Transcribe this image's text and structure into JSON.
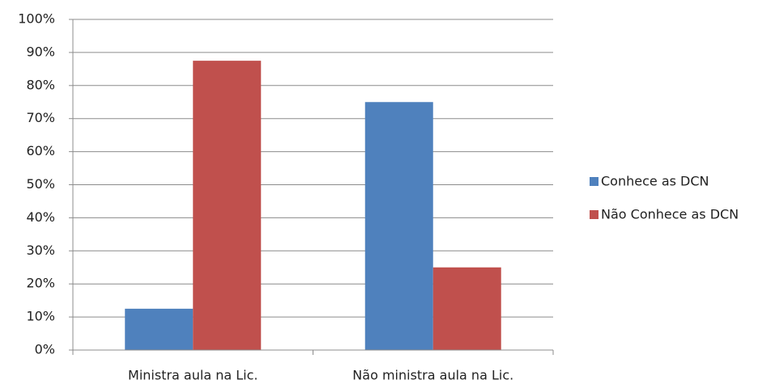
{
  "chart_data": {
    "type": "bar",
    "categories": [
      "Ministra aula na Lic.",
      "Não ministra aula na Lic."
    ],
    "series": [
      {
        "name": "Conhece as DCN",
        "color": "#4f81bd",
        "values": [
          12.5,
          75
        ]
      },
      {
        "name": "Não Conhece as DCN",
        "color": "#c0504d",
        "values": [
          87.5,
          25
        ]
      }
    ],
    "ylim": [
      0,
      100
    ],
    "yticks": [
      {
        "value": 0,
        "label": "0%"
      },
      {
        "value": 10,
        "label": "10%"
      },
      {
        "value": 20,
        "label": "20%"
      },
      {
        "value": 30,
        "label": "30%"
      },
      {
        "value": 40,
        "label": "40%"
      },
      {
        "value": 50,
        "label": "50%"
      },
      {
        "value": 60,
        "label": "60%"
      },
      {
        "value": 70,
        "label": "70%"
      },
      {
        "value": 80,
        "label": "80%"
      },
      {
        "value": 90,
        "label": "90%"
      },
      {
        "value": 100,
        "label": "100%"
      }
    ],
    "grid": true,
    "legend": "right"
  }
}
